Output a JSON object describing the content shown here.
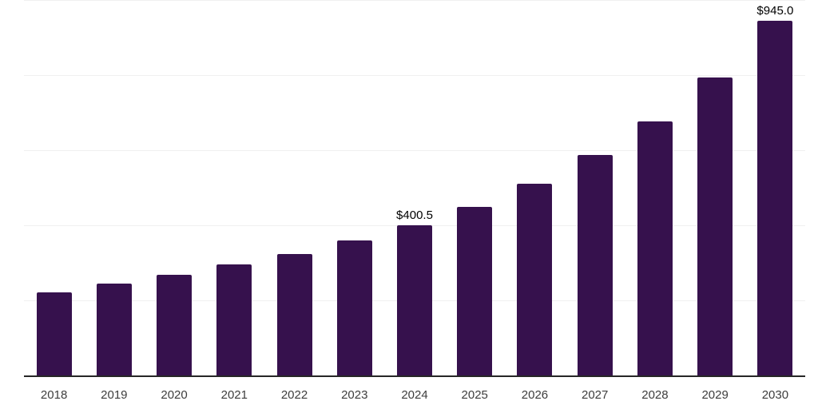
{
  "chart_data": {
    "type": "bar",
    "categories": [
      "2018",
      "2019",
      "2020",
      "2021",
      "2022",
      "2023",
      "2024",
      "2025",
      "2026",
      "2027",
      "2028",
      "2029",
      "2030"
    ],
    "values": [
      221.5,
      245.5,
      269,
      297,
      324,
      360.5,
      400.5,
      450,
      512,
      588,
      678,
      795,
      945
    ],
    "value_labels": {
      "2024": "$400.5",
      "2030": "$945.0"
    },
    "title": "",
    "xlabel": "",
    "ylabel": "",
    "ylim": [
      0,
      1000
    ],
    "gridline_values": [
      200,
      400,
      600,
      800,
      1000
    ],
    "grid": true,
    "legend": false,
    "colors": {
      "bar": "#36114D",
      "gridline": "#f0f0f0",
      "axis_line": "#262626",
      "tick_label": "#3d3d3d",
      "value_label": "#000000"
    }
  }
}
